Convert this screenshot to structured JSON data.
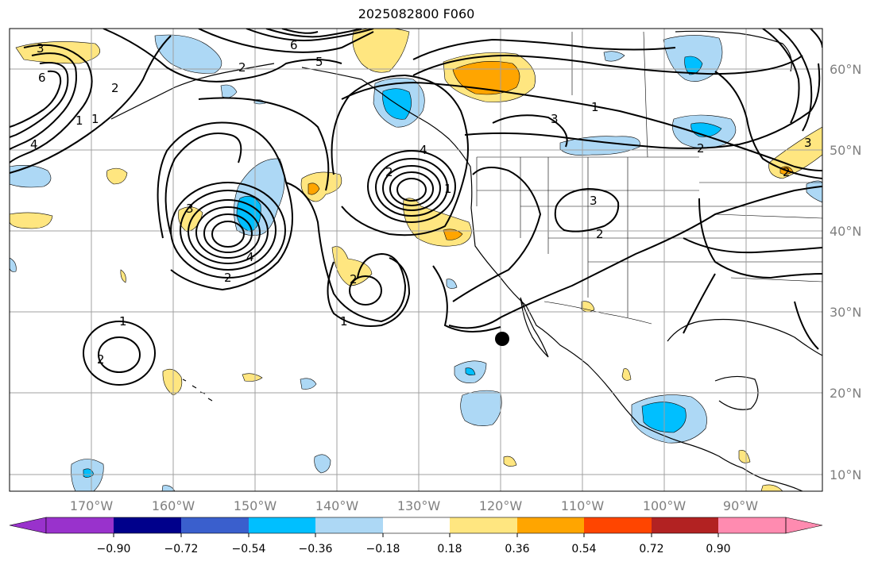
{
  "title": "2025082800 F060",
  "lon_labels": [
    "170°W",
    "160°W",
    "150°W",
    "140°W",
    "130°W",
    "120°W",
    "110°W",
    "100°W",
    "90°W"
  ],
  "lat_labels": [
    "60°N",
    "50°N",
    "40°N",
    "30°N",
    "20°N",
    "10°N"
  ],
  "colorbar": {
    "ticks": [
      "−0.90",
      "−0.72",
      "−0.54",
      "−0.36",
      "−0.18",
      "0.18",
      "0.36",
      "0.54",
      "0.72",
      "0.90"
    ],
    "colors": [
      "#9932cc",
      "#00008b",
      "#3a5fcd",
      "#00bfff",
      "#add8f5",
      "#ffffff",
      "#ffe680",
      "#ffa500",
      "#ff4500",
      "#b22222",
      "#ff8bb0"
    ]
  },
  "contour_labels": [
    "1",
    "2",
    "3",
    "4",
    "5",
    "6",
    "2",
    "1",
    "3",
    "2",
    "1",
    "4",
    "2",
    "2",
    "1",
    "3",
    "2",
    "1",
    "4",
    "2",
    "6",
    "3",
    "2",
    "1",
    "3",
    "2"
  ],
  "colors": {
    "land_border": "#000000",
    "contour": "#000000",
    "grid": "#a0a0a0",
    "pos_light": "#ffe680",
    "pos_mid": "#ffa500",
    "neg_light": "#add8f5",
    "neg_mid": "#00bfff"
  },
  "marker": {
    "lon": -119.0,
    "lat": 26.5,
    "color": "#000000"
  }
}
